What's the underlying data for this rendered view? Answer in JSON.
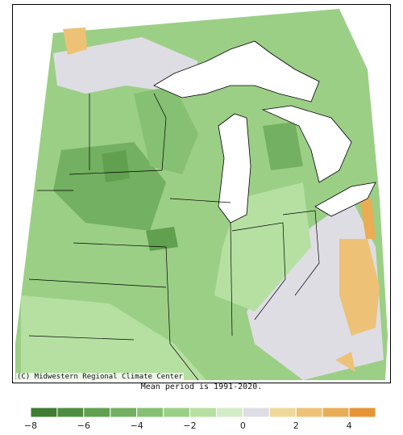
{
  "map": {
    "credit": "(C) Midwestern Regional Climate Center",
    "period_note": "Mean period is 1991-2020."
  },
  "legend": {
    "bins": [
      {
        "from": -8,
        "to": -7,
        "color": "#3f7d33"
      },
      {
        "from": -7,
        "to": -6,
        "color": "#4f8e41"
      },
      {
        "from": -6,
        "to": -5,
        "color": "#60a04f"
      },
      {
        "from": -5,
        "to": -4,
        "color": "#73b061"
      },
      {
        "from": -4,
        "to": -3,
        "color": "#86c073"
      },
      {
        "from": -3,
        "to": -2,
        "color": "#9bcf86"
      },
      {
        "from": -2,
        "to": -1,
        "color": "#b5e0a2"
      },
      {
        "from": -1,
        "to": 0,
        "color": "#d2ecc5"
      },
      {
        "from": 0,
        "to": 1,
        "color": "#dedde4"
      },
      {
        "from": 1,
        "to": 2,
        "color": "#f0d89a"
      },
      {
        "from": 2,
        "to": 3,
        "color": "#edc277"
      },
      {
        "from": 3,
        "to": 4,
        "color": "#e9ad56"
      },
      {
        "from": 4,
        "to": 5,
        "color": "#e69436"
      }
    ],
    "tick_values": [
      -8,
      -6,
      -4,
      -2,
      0,
      2,
      4
    ],
    "tick_labels": [
      "−8",
      "−6",
      "−4",
      "−2",
      "0",
      "2",
      "4"
    ]
  },
  "colors": {
    "green_dark": "#60a04f",
    "green_mid": "#86c073",
    "green_light": "#b5e0a2",
    "neutral": "#dedde4",
    "orange": "#edc277",
    "water": "#ffffff"
  }
}
